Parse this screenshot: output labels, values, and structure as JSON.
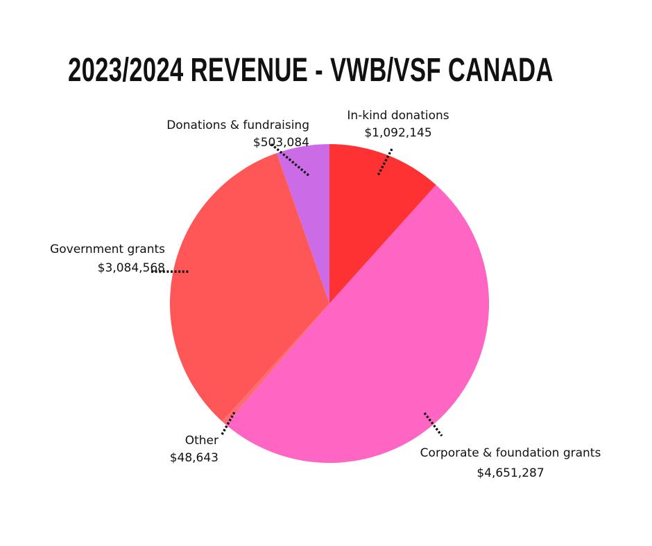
{
  "chart_data": {
    "type": "pie",
    "title": "2023/2024 REVENUE - VWB/VSF CANADA",
    "slices": [
      {
        "label": "In-kind donations",
        "value_label": "$1,092,145",
        "value": 1092145,
        "color": "#fe3232"
      },
      {
        "label": "Corporate & foundation grants",
        "value_label": "$4,651,287",
        "value": 4651287,
        "color": "#ff66c3"
      },
      {
        "label": "Other",
        "value_label": "$48,643",
        "value": 48643,
        "color": "#ff6b72"
      },
      {
        "label": "Government grants",
        "value_label": "$3,084,568",
        "value": 3084568,
        "color": "#ff5757"
      },
      {
        "label": "Donations & fundraising",
        "value_label": "$503,084",
        "value": 503084,
        "color": "#cb6ce6"
      }
    ],
    "start_angle_deg": 0,
    "direction": "clockwise"
  }
}
